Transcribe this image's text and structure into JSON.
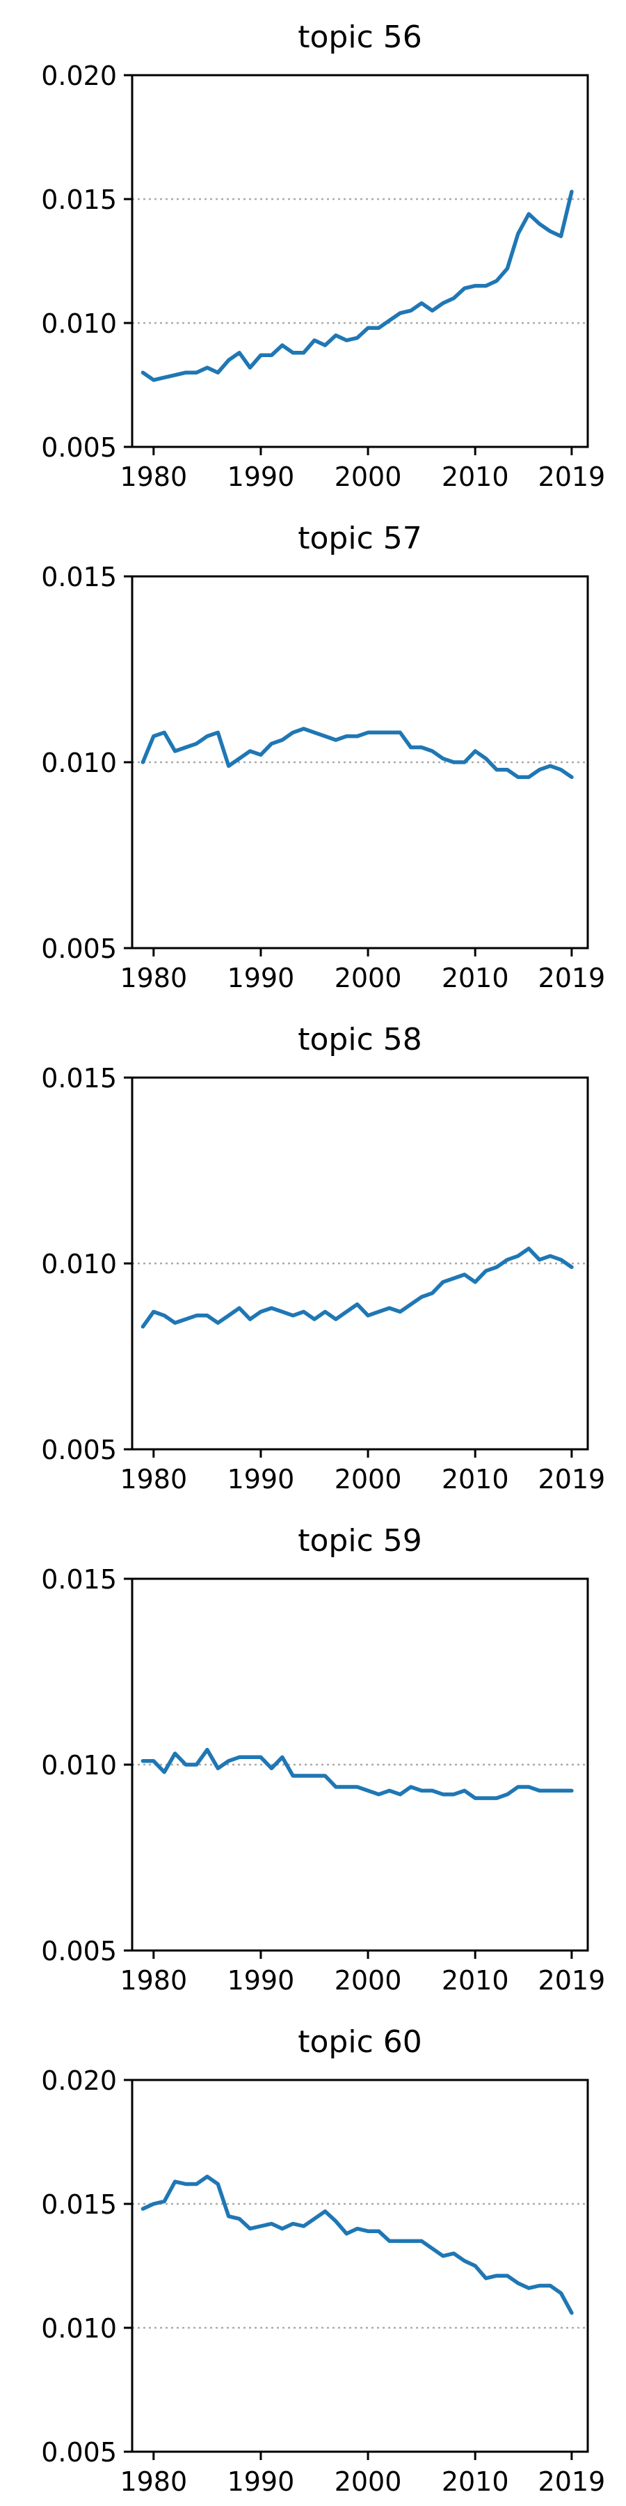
{
  "chart_data": [
    {
      "type": "line",
      "title": "topic 56",
      "xlabel": "",
      "ylabel": "",
      "xlim": [
        1978,
        2020.5
      ],
      "ylim": [
        0.005,
        0.02
      ],
      "xticks": [
        "1980",
        "1990",
        "2000",
        "2010",
        "2019"
      ],
      "yticks": [
        "0.005",
        "0.010",
        "0.015",
        "0.020"
      ],
      "reference_lines": [
        0.01,
        0.015
      ],
      "series": [
        {
          "color": "#1f77b4",
          "x": [
            1979,
            1980,
            1981,
            1982,
            1983,
            1984,
            1985,
            1986,
            1987,
            1988,
            1989,
            1990,
            1991,
            1992,
            1993,
            1994,
            1995,
            1996,
            1997,
            1998,
            1999,
            2000,
            2001,
            2002,
            2003,
            2004,
            2005,
            2006,
            2007,
            2008,
            2009,
            2010,
            2011,
            2012,
            2013,
            2014,
            2015,
            2016,
            2017,
            2018,
            2019
          ],
          "y": [
            0.008,
            0.0077,
            0.0078,
            0.0079,
            0.008,
            0.008,
            0.0082,
            0.008,
            0.0085,
            0.0088,
            0.0082,
            0.0087,
            0.0087,
            0.0091,
            0.0088,
            0.0088,
            0.0093,
            0.0091,
            0.0095,
            0.0093,
            0.0094,
            0.0098,
            0.0098,
            0.0101,
            0.0104,
            0.0105,
            0.0108,
            0.0105,
            0.0108,
            0.011,
            0.0114,
            0.0115,
            0.0115,
            0.0117,
            0.0122,
            0.0136,
            0.0144,
            0.014,
            0.0137,
            0.0135,
            0.0153
          ]
        }
      ]
    },
    {
      "type": "line",
      "title": "topic 57",
      "xlabel": "",
      "ylabel": "",
      "xlim": [
        1978,
        2020.5
      ],
      "ylim": [
        0.005,
        0.015
      ],
      "xticks": [
        "1980",
        "1990",
        "2000",
        "2010",
        "2019"
      ],
      "yticks": [
        "0.005",
        "0.010",
        "0.015"
      ],
      "reference_lines": [
        0.01
      ],
      "series": [
        {
          "color": "#1f77b4",
          "x": [
            1979,
            1980,
            1981,
            1982,
            1983,
            1984,
            1985,
            1986,
            1987,
            1988,
            1989,
            1990,
            1991,
            1992,
            1993,
            1994,
            1995,
            1996,
            1997,
            1998,
            1999,
            2000,
            2001,
            2002,
            2003,
            2004,
            2005,
            2006,
            2007,
            2008,
            2009,
            2010,
            2011,
            2012,
            2013,
            2014,
            2015,
            2016,
            2017,
            2018,
            2019
          ],
          "y": [
            0.01,
            0.0107,
            0.0108,
            0.0103,
            0.0104,
            0.0105,
            0.0107,
            0.0108,
            0.0099,
            0.0101,
            0.0103,
            0.0102,
            0.0105,
            0.0106,
            0.0108,
            0.0109,
            0.0108,
            0.0107,
            0.0106,
            0.0107,
            0.0107,
            0.0108,
            0.0108,
            0.0108,
            0.0108,
            0.0104,
            0.0104,
            0.0103,
            0.0101,
            0.01,
            0.01,
            0.0103,
            0.0101,
            0.0098,
            0.0098,
            0.0096,
            0.0096,
            0.0098,
            0.0099,
            0.0098,
            0.0096
          ]
        }
      ]
    },
    {
      "type": "line",
      "title": "topic 58",
      "xlabel": "",
      "ylabel": "",
      "xlim": [
        1978,
        2020.5
      ],
      "ylim": [
        0.005,
        0.015
      ],
      "xticks": [
        "1980",
        "1990",
        "2000",
        "2010",
        "2019"
      ],
      "yticks": [
        "0.005",
        "0.010",
        "0.015"
      ],
      "reference_lines": [
        0.01
      ],
      "series": [
        {
          "color": "#1f77b4",
          "x": [
            1979,
            1980,
            1981,
            1982,
            1983,
            1984,
            1985,
            1986,
            1987,
            1988,
            1989,
            1990,
            1991,
            1992,
            1993,
            1994,
            1995,
            1996,
            1997,
            1998,
            1999,
            2000,
            2001,
            2002,
            2003,
            2004,
            2005,
            2006,
            2007,
            2008,
            2009,
            2010,
            2011,
            2012,
            2013,
            2014,
            2015,
            2016,
            2017,
            2018,
            2019
          ],
          "y": [
            0.0083,
            0.0087,
            0.0086,
            0.0084,
            0.0085,
            0.0086,
            0.0086,
            0.0084,
            0.0086,
            0.0088,
            0.0085,
            0.0087,
            0.0088,
            0.0087,
            0.0086,
            0.0087,
            0.0085,
            0.0087,
            0.0085,
            0.0087,
            0.0089,
            0.0086,
            0.0087,
            0.0088,
            0.0087,
            0.0089,
            0.0091,
            0.0092,
            0.0095,
            0.0096,
            0.0097,
            0.0095,
            0.0098,
            0.0099,
            0.0101,
            0.0102,
            0.0104,
            0.0101,
            0.0102,
            0.0101,
            0.0099
          ]
        }
      ]
    },
    {
      "type": "line",
      "title": "topic 59",
      "xlabel": "",
      "ylabel": "",
      "xlim": [
        1978,
        2020.5
      ],
      "ylim": [
        0.005,
        0.015
      ],
      "xticks": [
        "1980",
        "1990",
        "2000",
        "2010",
        "2019"
      ],
      "yticks": [
        "0.005",
        "0.010",
        "0.015"
      ],
      "reference_lines": [
        0.01
      ],
      "series": [
        {
          "color": "#1f77b4",
          "x": [
            1979,
            1980,
            1981,
            1982,
            1983,
            1984,
            1985,
            1986,
            1987,
            1988,
            1989,
            1990,
            1991,
            1992,
            1993,
            1994,
            1995,
            1996,
            1997,
            1998,
            1999,
            2000,
            2001,
            2002,
            2003,
            2004,
            2005,
            2006,
            2007,
            2008,
            2009,
            2010,
            2011,
            2012,
            2013,
            2014,
            2015,
            2016,
            2017,
            2018,
            2019
          ],
          "y": [
            0.0101,
            0.0101,
            0.0098,
            0.0103,
            0.01,
            0.01,
            0.0104,
            0.0099,
            0.0101,
            0.0102,
            0.0102,
            0.0102,
            0.0099,
            0.0102,
            0.0097,
            0.0097,
            0.0097,
            0.0097,
            0.0094,
            0.0094,
            0.0094,
            0.0093,
            0.0092,
            0.0093,
            0.0092,
            0.0094,
            0.0093,
            0.0093,
            0.0092,
            0.0092,
            0.0093,
            0.0091,
            0.0091,
            0.0091,
            0.0092,
            0.0094,
            0.0094,
            0.0093,
            0.0093,
            0.0093,
            0.0093
          ]
        }
      ]
    },
    {
      "type": "line",
      "title": "topic 60",
      "xlabel": "",
      "ylabel": "",
      "xlim": [
        1978,
        2020.5
      ],
      "ylim": [
        0.005,
        0.02
      ],
      "xticks": [
        "1980",
        "1990",
        "2000",
        "2010",
        "2019"
      ],
      "yticks": [
        "0.005",
        "0.010",
        "0.015",
        "0.020"
      ],
      "reference_lines": [
        0.01,
        0.015
      ],
      "series": [
        {
          "color": "#1f77b4",
          "x": [
            1979,
            1980,
            1981,
            1982,
            1983,
            1984,
            1985,
            1986,
            1987,
            1988,
            1989,
            1990,
            1991,
            1992,
            1993,
            1994,
            1995,
            1996,
            1997,
            1998,
            1999,
            2000,
            2001,
            2002,
            2003,
            2004,
            2005,
            2006,
            2007,
            2008,
            2009,
            2010,
            2011,
            2012,
            2013,
            2014,
            2015,
            2016,
            2017,
            2018,
            2019
          ],
          "y": [
            0.0148,
            0.015,
            0.0151,
            0.0159,
            0.0158,
            0.0158,
            0.0161,
            0.0158,
            0.0145,
            0.0144,
            0.014,
            0.0141,
            0.0142,
            0.014,
            0.0142,
            0.0141,
            0.0144,
            0.0147,
            0.0143,
            0.0138,
            0.014,
            0.0139,
            0.0139,
            0.0135,
            0.0135,
            0.0135,
            0.0135,
            0.0132,
            0.0129,
            0.013,
            0.0127,
            0.0125,
            0.012,
            0.0121,
            0.0121,
            0.0118,
            0.0116,
            0.0117,
            0.0117,
            0.0114,
            0.0106
          ]
        }
      ]
    }
  ]
}
